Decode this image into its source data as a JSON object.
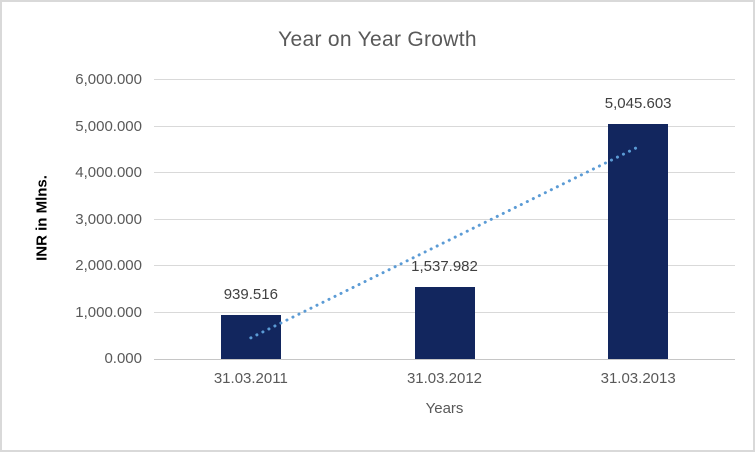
{
  "chart_data": {
    "type": "bar",
    "title": "Year on Year Growth",
    "xlabel": "Years",
    "ylabel": "INR in Mlns.",
    "categories": [
      "31.03.2011",
      "31.03.2012",
      "31.03.2013"
    ],
    "values": [
      939.516,
      1537.982,
      5045.603
    ],
    "data_labels": [
      "939.516",
      "1,537.982",
      "5,045.603"
    ],
    "ylim": [
      0,
      6000
    ],
    "ytick_step": 1000,
    "ytick_labels": [
      "0.000",
      "1,000.000",
      "2,000.000",
      "3,000.000",
      "4,000.000",
      "5,000.000",
      "6,000.000"
    ],
    "grid": true,
    "legend": "none",
    "trendline": {
      "type": "linear",
      "style": "dotted",
      "fit_values_at_first_and_last_category": [
        454.66,
        4560.74
      ]
    },
    "colors": {
      "bar": "#12265e",
      "trendline": "#5b9bd5",
      "grid": "#d9d9d9",
      "axis_line": "#c6c6c6",
      "title_text": "#595959",
      "tick_text": "#595959",
      "data_label_text": "#404040",
      "y_axis_title_text": "#000000"
    }
  }
}
